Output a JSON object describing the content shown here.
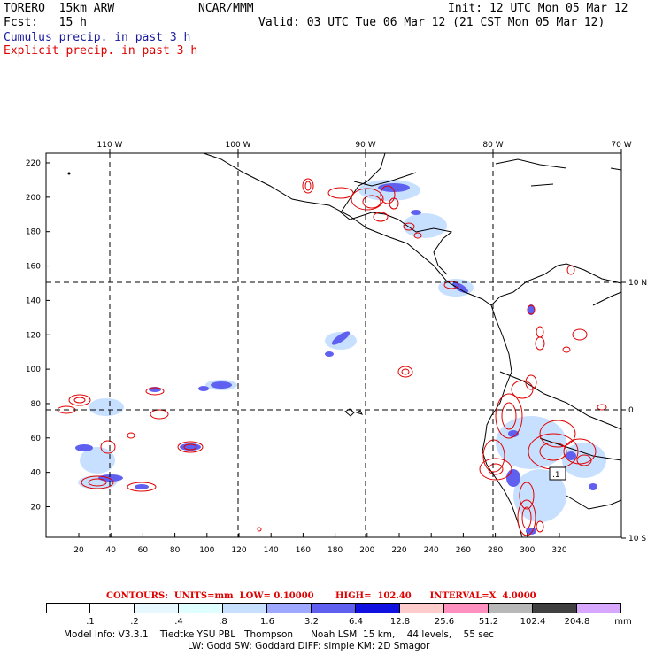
{
  "header": {
    "model": "TORERO  15km ARW",
    "org": "NCAR/MMM",
    "init": "Init: 12 UTC Mon 05 Mar 12",
    "fcst": "Fcst:   15 h",
    "valid": "Valid: 03 UTC Tue 06 Mar 12 (21 CST Mon 05 Mar 12)",
    "cumulus": "Cumulus precip. in past 3 h",
    "explicit": "Explicit precip. in past 3 h"
  },
  "map": {
    "top_labels": [
      "110 W",
      "100 W",
      "90 W",
      "80 W",
      "70 W"
    ],
    "right_labels": [
      "10 N",
      "0",
      "10 S"
    ],
    "x_ticks": [
      "20",
      "40",
      "60",
      "80",
      "100",
      "120",
      "140",
      "160",
      "180",
      "200",
      "220",
      "240",
      "260",
      "280",
      "300",
      "320"
    ],
    "y_ticks": [
      "220",
      "200",
      "180",
      "160",
      "140",
      "120",
      "100",
      "80",
      "60",
      "40",
      "20"
    ],
    "box_label": ".1"
  },
  "colors": {
    "cumulus": "#1a1aa0",
    "explicit": "#e00000",
    "coast": "#000000"
  },
  "contours_info": "CONTOURS:  UNITS=mm  LOW= 0.10000       HIGH=  102.40      INTERVAL=X  4.0000",
  "legend": {
    "labels": [
      ".1",
      ".2",
      ".4",
      ".8",
      "1.6",
      "3.2",
      "6.4",
      "12.8",
      "25.6",
      "51.2",
      "102.4",
      "204.8"
    ],
    "unit": "mm",
    "colors": [
      "#ffffff",
      "#ffffff",
      "#e8f8ff",
      "#e0ffff",
      "#c8e0ff",
      "#9fa8ff",
      "#6060f0",
      "#1010e0",
      "#ffcccc",
      "#ff90c0",
      "#b8b8b8",
      "#404040",
      "#d8a8ff"
    ]
  },
  "footer": {
    "line1": "Model Info: V3.3.1    Tiedtke YSU PBL   Thompson      Noah LSM  15 km,    44 levels,    55 sec",
    "line2": "LW: Godd SW: Goddard DIFF: simple KM: 2D Smagor"
  }
}
